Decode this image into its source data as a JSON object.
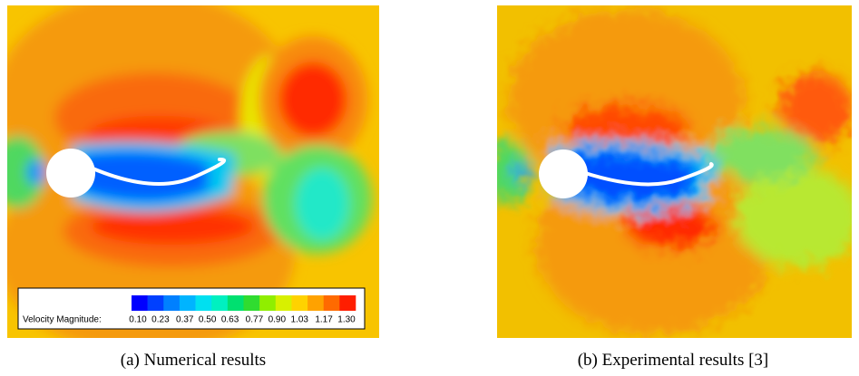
{
  "figure": {
    "panels": [
      {
        "caption": "(a) Numerical results"
      },
      {
        "caption": "(b) Experimental results [3]"
      }
    ],
    "colorbar": {
      "label": "Velocity Magnitude:",
      "colors": [
        "#0000ff",
        "#0040ff",
        "#0080ff",
        "#00b4ff",
        "#00e0f0",
        "#00f0c0",
        "#00e070",
        "#30dc30",
        "#90ee00",
        "#d8f000",
        "#ffd200",
        "#ffa200",
        "#ff6a00",
        "#ff1e00"
      ],
      "ticks": [
        {
          "value": 0.1,
          "label": "0.10"
        },
        {
          "value": 0.23,
          "label": "0.23"
        },
        {
          "value": 0.37,
          "label": "0.37"
        },
        {
          "value": 0.5,
          "label": "0.50"
        },
        {
          "value": 0.63,
          "label": "0.63"
        },
        {
          "value": 0.77,
          "label": "0.77"
        },
        {
          "value": 0.9,
          "label": "0.90"
        },
        {
          "value": 1.03,
          "label": "1.03"
        },
        {
          "value": 1.17,
          "label": "1.17"
        },
        {
          "value": 1.3,
          "label": "1.30"
        }
      ]
    }
  }
}
